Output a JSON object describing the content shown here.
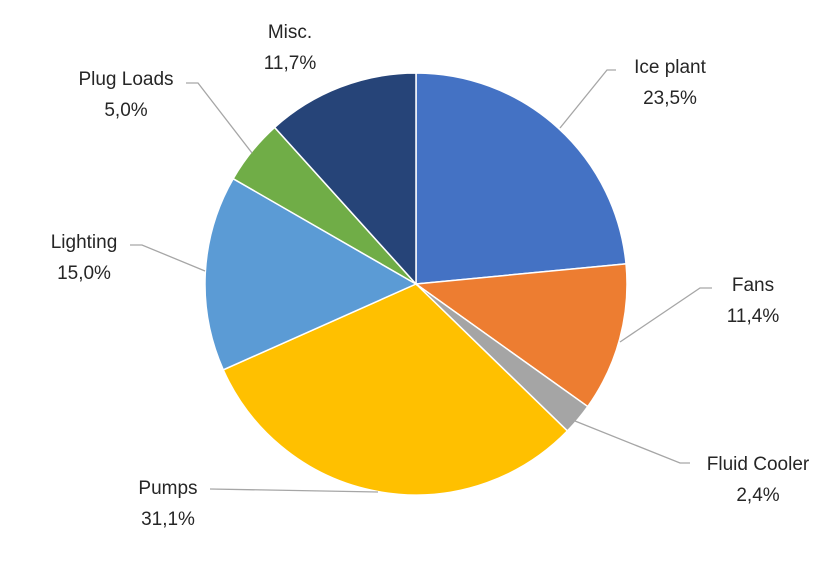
{
  "chart_data": {
    "type": "pie",
    "categories": [
      "Ice plant",
      "Fans",
      "Fluid Cooler",
      "Pumps",
      "Lighting",
      "Plug Loads",
      "Misc."
    ],
    "values": [
      23.5,
      11.4,
      2.4,
      31.1,
      15.0,
      5.0,
      11.7
    ],
    "value_labels": [
      "23,5%",
      "11,4%",
      "2,4%",
      "31,1%",
      "15,0%",
      "5,0%",
      "11,7%"
    ],
    "colors": [
      "#4472c4",
      "#ed7d31",
      "#a5a5a5",
      "#ffc000",
      "#5b9bd5",
      "#70ad47",
      "#264478"
    ]
  }
}
